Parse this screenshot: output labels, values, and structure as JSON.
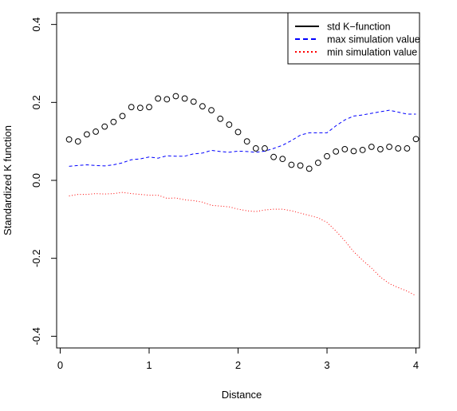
{
  "chart_data": {
    "type": "scatter",
    "xlabel": "Distance",
    "ylabel": "Standardized K function",
    "xlim": [
      -0.04,
      4.04
    ],
    "ylim": [
      -0.43,
      0.43
    ],
    "x_ticks": [
      0,
      1,
      2,
      3,
      4
    ],
    "x_tick_labels": [
      "0",
      "1",
      "2",
      "3",
      "4"
    ],
    "y_ticks": [
      -0.4,
      -0.2,
      0.0,
      0.2,
      0.4
    ],
    "y_tick_labels": [
      "-0.4",
      "-0.2",
      "0.0",
      "0.2",
      "0.4"
    ],
    "grid": false,
    "legend_position": "top-right",
    "series": [
      {
        "name": "std K−function",
        "style": "points",
        "color": "#000000",
        "x": [
          0.1,
          0.2,
          0.3,
          0.4,
          0.5,
          0.6,
          0.7,
          0.8,
          0.9,
          1.0,
          1.1,
          1.2,
          1.3,
          1.4,
          1.5,
          1.6,
          1.7,
          1.8,
          1.9,
          2.0,
          2.1,
          2.2,
          2.3,
          2.4,
          2.5,
          2.6,
          2.7,
          2.8,
          2.9,
          3.0,
          3.1,
          3.2,
          3.3,
          3.4,
          3.5,
          3.6,
          3.7,
          3.8,
          3.9,
          4.0
        ],
        "y": [
          0.105,
          0.1,
          0.118,
          0.125,
          0.138,
          0.15,
          0.165,
          0.188,
          0.186,
          0.188,
          0.21,
          0.208,
          0.216,
          0.21,
          0.202,
          0.19,
          0.18,
          0.158,
          0.143,
          0.124,
          0.1,
          0.082,
          0.082,
          0.06,
          0.055,
          0.04,
          0.038,
          0.03,
          0.045,
          0.062,
          0.074,
          0.08,
          0.075,
          0.078,
          0.086,
          0.08,
          0.086,
          0.082,
          0.082,
          0.106
        ]
      },
      {
        "name": "max simulation value",
        "style": "dashed",
        "color": "#0000ff",
        "x": [
          0.1,
          0.2,
          0.3,
          0.4,
          0.5,
          0.6,
          0.7,
          0.8,
          0.9,
          1.0,
          1.1,
          1.2,
          1.3,
          1.4,
          1.5,
          1.6,
          1.7,
          1.8,
          1.9,
          2.0,
          2.1,
          2.2,
          2.3,
          2.4,
          2.5,
          2.6,
          2.7,
          2.8,
          2.9,
          3.0,
          3.1,
          3.2,
          3.3,
          3.4,
          3.5,
          3.6,
          3.7,
          3.8,
          3.9,
          4.0
        ],
        "y": [
          0.036,
          0.038,
          0.04,
          0.038,
          0.037,
          0.04,
          0.045,
          0.053,
          0.055,
          0.06,
          0.057,
          0.063,
          0.062,
          0.062,
          0.068,
          0.07,
          0.077,
          0.074,
          0.072,
          0.075,
          0.074,
          0.072,
          0.075,
          0.082,
          0.09,
          0.102,
          0.116,
          0.122,
          0.122,
          0.122,
          0.14,
          0.155,
          0.165,
          0.168,
          0.172,
          0.176,
          0.18,
          0.175,
          0.17,
          0.17
        ]
      },
      {
        "name": "min simulation value",
        "style": "dotted",
        "color": "#ff0000",
        "x": [
          0.1,
          0.2,
          0.3,
          0.4,
          0.5,
          0.6,
          0.7,
          0.8,
          0.9,
          1.0,
          1.1,
          1.2,
          1.3,
          1.4,
          1.5,
          1.6,
          1.7,
          1.8,
          1.9,
          2.0,
          2.1,
          2.2,
          2.3,
          2.4,
          2.5,
          2.6,
          2.7,
          2.8,
          2.9,
          3.0,
          3.1,
          3.2,
          3.3,
          3.4,
          3.5,
          3.6,
          3.7,
          3.8,
          3.9,
          4.0
        ],
        "y": [
          -0.04,
          -0.036,
          -0.036,
          -0.034,
          -0.035,
          -0.034,
          -0.031,
          -0.034,
          -0.036,
          -0.038,
          -0.038,
          -0.046,
          -0.045,
          -0.05,
          -0.052,
          -0.056,
          -0.064,
          -0.066,
          -0.068,
          -0.074,
          -0.078,
          -0.08,
          -0.076,
          -0.074,
          -0.074,
          -0.078,
          -0.084,
          -0.09,
          -0.096,
          -0.108,
          -0.13,
          -0.155,
          -0.183,
          -0.205,
          -0.225,
          -0.248,
          -0.265,
          -0.275,
          -0.284,
          -0.296
        ]
      }
    ]
  }
}
